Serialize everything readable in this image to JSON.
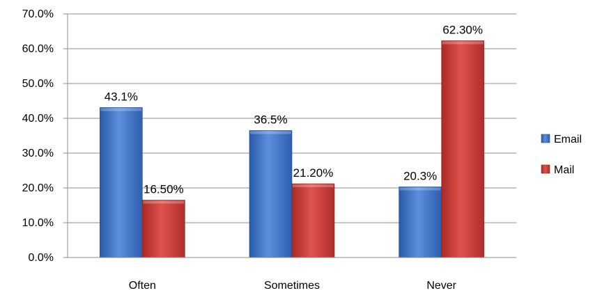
{
  "chart_data": {
    "type": "bar",
    "categories": [
      "Often",
      "Sometimes",
      "Never"
    ],
    "series": [
      {
        "name": "Email",
        "values": [
          43.1,
          36.5,
          20.3
        ],
        "labels": [
          "43.1%",
          "36.5%",
          "20.3%"
        ],
        "color": "#3a6fc4"
      },
      {
        "name": "Mail",
        "values": [
          16.5,
          21.2,
          62.3
        ],
        "labels": [
          "16.50%",
          "21.20%",
          "62.30%"
        ],
        "color": "#c8342f"
      }
    ],
    "yticks": [
      "0.0%",
      "10.0%",
      "20.0%",
      "30.0%",
      "40.0%",
      "50.0%",
      "60.0%",
      "70.0%"
    ],
    "ylim": [
      0,
      70
    ],
    "grid": true,
    "legend": "right"
  }
}
